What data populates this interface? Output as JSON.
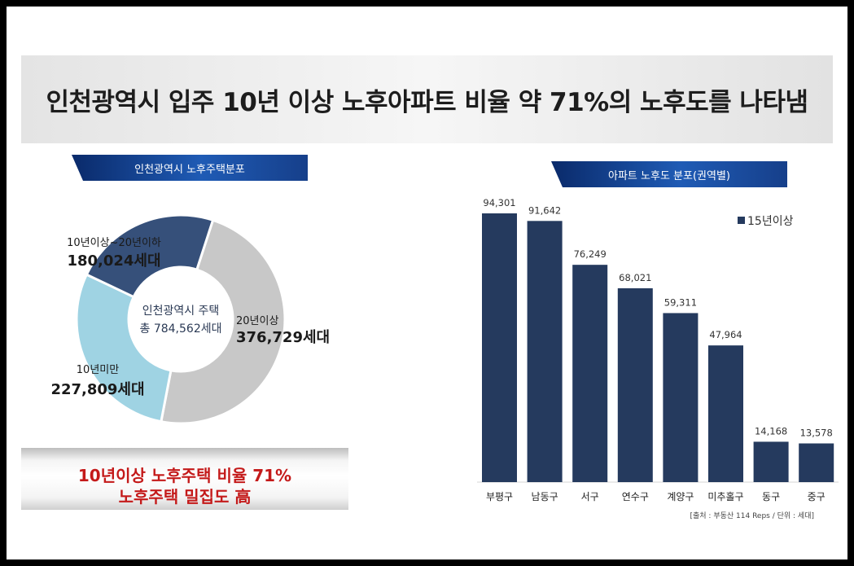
{
  "title": "인천광역시 입주 10년 이상 노후아파트 비율 약 71%의 노후도를 나타냄",
  "summary": {
    "line1": "10년이상 노후주택 비율 71%",
    "line2": "노후주택 밀집도 高"
  },
  "colors": {
    "navy": "#253a5e",
    "gray": "#c8c8c8",
    "light_blue": "#9fd3e3",
    "red": "#c41a1a"
  },
  "chart_data": [
    {
      "type": "pie",
      "title": "인천광역시 노후주택분포",
      "center_label": {
        "line1": "인천광역시 주택",
        "line2": "총 784,562세대"
      },
      "slices": [
        {
          "label": "20년이상",
          "value": 376729,
          "value_label": "376,729세대",
          "color": "#c8c8c8"
        },
        {
          "label": "10년미만",
          "value": 227809,
          "value_label": "227,809세대",
          "color": "#9fd3e3"
        },
        {
          "label": "10년이상~20년이하",
          "value": 180024,
          "value_label": "180,024세대",
          "color": "#36507a"
        }
      ]
    },
    {
      "type": "bar",
      "title": "아파트 노후도 분포(권역별)",
      "categories": [
        "부평구",
        "남동구",
        "서구",
        "연수구",
        "계양구",
        "미추홀구",
        "동구",
        "중구"
      ],
      "series": [
        {
          "name": "15년이상",
          "values": [
            94301,
            91642,
            76249,
            68021,
            59311,
            47964,
            14168,
            13578
          ],
          "color": "#253a5e"
        }
      ],
      "value_labels": [
        "94,301",
        "91,642",
        "76,249",
        "68,021",
        "59,311",
        "47,964",
        "14,168",
        "13,578"
      ],
      "legend": "top-right",
      "source": "[출처 : 부동산 114 Reps / 단위 : 세대]",
      "ylim": [
        0,
        94301
      ]
    }
  ]
}
